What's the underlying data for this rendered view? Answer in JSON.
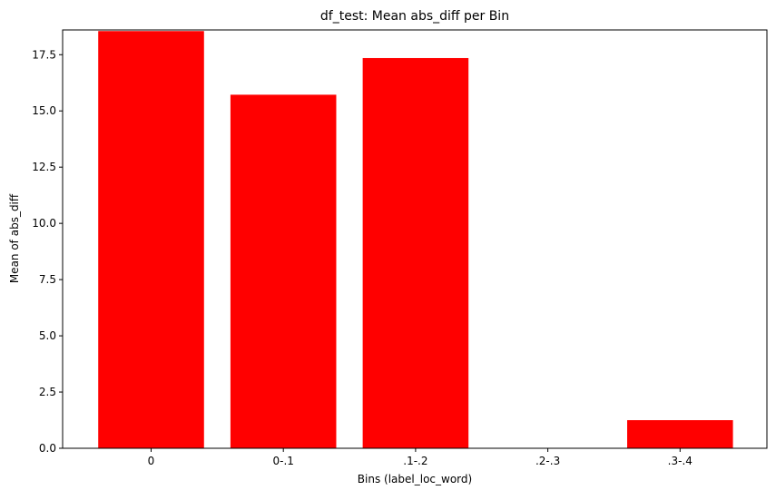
{
  "chart_data": {
    "type": "bar",
    "title": "df_test: Mean abs_diff per Bin",
    "xlabel": "Bins (label_loc_word)",
    "ylabel": "Mean of abs_diff",
    "categories": [
      "0",
      "0-.1",
      ".1-.2",
      ".2-.3",
      ".3-.4"
    ],
    "values": [
      18.55,
      15.72,
      17.35,
      0,
      1.25
    ],
    "ylim": [
      0,
      18.6
    ],
    "yticks": [
      0,
      2.5,
      5,
      7.5,
      10,
      12.5,
      15,
      17.5
    ],
    "ytick_labels": [
      "0.0",
      "2.5",
      "5.0",
      "7.5",
      "10.0",
      "12.5",
      "15.0",
      "17.5"
    ],
    "bar_color": "#ff0000",
    "grid": false,
    "legend": false
  }
}
